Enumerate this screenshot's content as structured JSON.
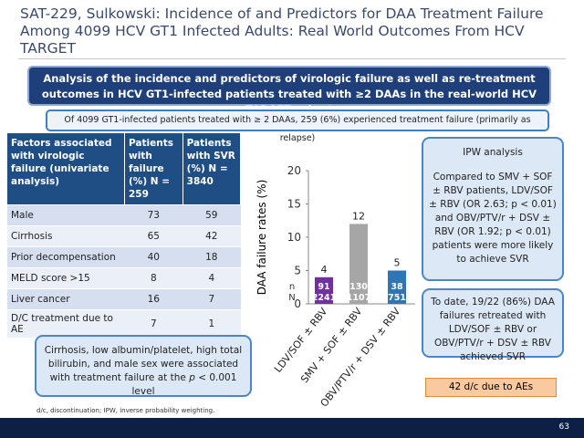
{
  "header": {
    "title": "SAT-229, Sulkowski: Incidence of and Predictors for DAA Treatment Failure Among 4099 HCV GT1 Infected Adults: Real World Outcomes From HCV TARGET"
  },
  "banner": "Analysis of the incidence and predictors of virologic failure as well as re-treatment outcomes in HCV GT1-infected patients treated with ≥2 DAAs in the real-world HCV TARGET cohort",
  "subbanner": "Of 4099 GT1-infected patients treated with ≥ 2 DAAs, 259 (6%) experienced treatment failure (primarily as relapse)",
  "table": {
    "header": [
      "Factors associated with virologic failure (univariate analysis)",
      "Patients with failure (%) N = 259",
      "Patients with SVR (%) N = 3840"
    ],
    "rows": [
      [
        "Male",
        73,
        59
      ],
      [
        "Cirrhosis",
        65,
        42
      ],
      [
        "Prior decompensation",
        40,
        18
      ],
      [
        "MELD score >15",
        8,
        4
      ],
      [
        "Liver cancer",
        16,
        7
      ],
      [
        "D/C treatment due to AE",
        7,
        1
      ]
    ]
  },
  "chart_data": {
    "type": "bar",
    "y_label": "DAA failure rates (%)",
    "categories": [
      "LDV/SOF ± RBV",
      "SMV + SOF ± RBV",
      "OBV/PTV/r + DSV ± RBV"
    ],
    "values": [
      4,
      12,
      5
    ],
    "colors": [
      "#7030a0",
      "#a6a6a6",
      "#2e75b6"
    ],
    "n_name": "n",
    "N_name": "N",
    "n": [
      91,
      130,
      38
    ],
    "N": [
      2241,
      1107,
      751
    ],
    "ylim": [
      0,
      20
    ],
    "yticks": [
      0,
      5,
      10,
      15,
      20
    ]
  },
  "ipw": {
    "title": "IPW analysis",
    "body": "Compared to SMV + SOF ± RBV patients, LDV/SOF ± RBV (OR 2.63; p < 0.01) and OBV/PTV/r + DSV ± RBV (OR 1.92; p < 0.01) patients were more likely to achieve SVR"
  },
  "retreat": "To date, 19/22 (86%) DAA failures retreated with LDV/SOF ± RBV or OBV/PTV/r + DSV ± RBV achieved SVR",
  "conclusion": {
    "before": "Cirrhosis, low albumin/platelet, high total bilirubin, and male sex were associated with treatment failure at the ",
    "p": "p",
    "after": " < 0.001 level"
  },
  "orange": "42 d/c due to AEs",
  "footnote": "d/c, discontinuation; IPW, inverse probability weighting.",
  "page_number": "63"
}
